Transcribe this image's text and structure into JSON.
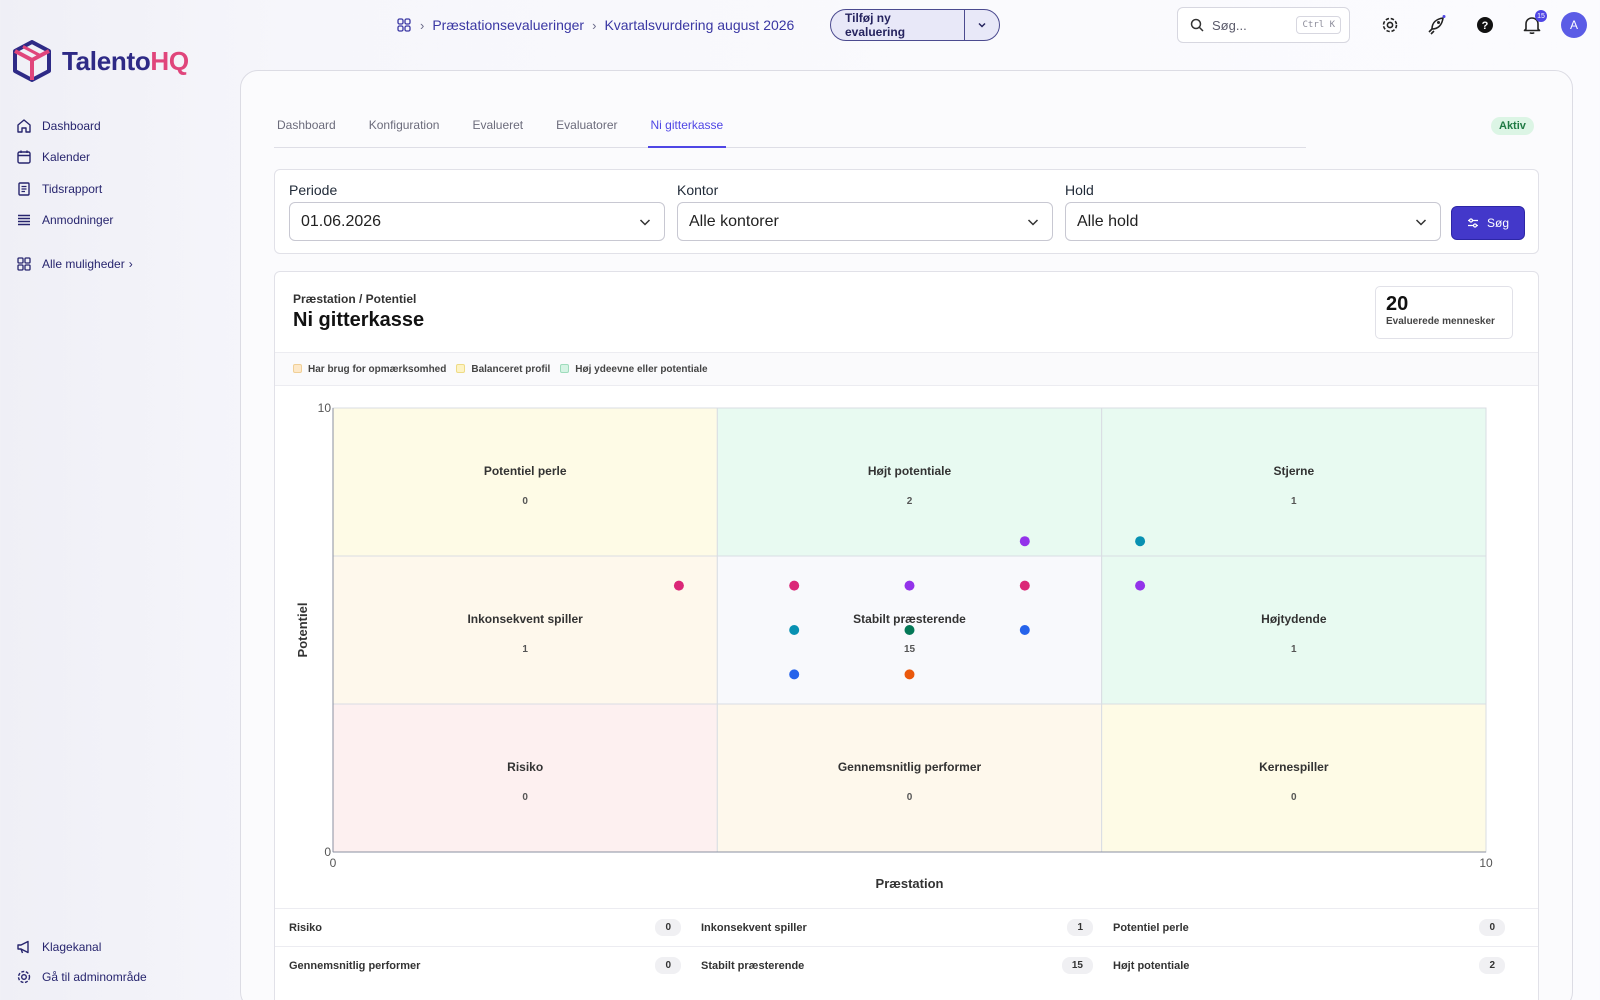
{
  "app": {
    "name_part1": "Talento",
    "name_part2": "HQ"
  },
  "sidebar": {
    "items": [
      {
        "label": "Dashboard",
        "icon": "home-icon"
      },
      {
        "label": "Kalender",
        "icon": "calendar-icon"
      },
      {
        "label": "Tidsrapport",
        "icon": "report-icon"
      },
      {
        "label": "Anmodninger",
        "icon": "list-icon"
      }
    ],
    "more_label": "Alle muligheder",
    "bottom": [
      {
        "label": "Klagekanal",
        "icon": "megaphone-icon"
      },
      {
        "label": "Gå til adminområde",
        "icon": "gear-icon"
      }
    ]
  },
  "header": {
    "breadcrumb": [
      "Præstationsevalueringer",
      "Kvartalsvurdering august 2026"
    ],
    "add_button": "Tilføj ny evaluering",
    "search_placeholder": "Søg...",
    "search_shortcut": "Ctrl K",
    "notification_count": "15",
    "avatar_initial": "A"
  },
  "tabs": [
    "Dashboard",
    "Konfiguration",
    "Evalueret",
    "Evaluatorer",
    "Ni gitterkasse"
  ],
  "active_tab": "Ni gitterkasse",
  "status": "Aktiv",
  "filters": {
    "period": {
      "label": "Periode",
      "value": "01.06.2026"
    },
    "office": {
      "label": "Kontor",
      "value": "Alle kontorer"
    },
    "team": {
      "label": "Hold",
      "value": "Alle hold"
    },
    "search_button": "Søg"
  },
  "card": {
    "subtitle": "Præstation / Potentiel",
    "title": "Ni gitterkasse",
    "count": "20",
    "count_label": "Evaluerede mennesker"
  },
  "legend": [
    {
      "label": "Har brug for opmærksomhed",
      "color": "#fde8c8"
    },
    {
      "label": "Balanceret profil",
      "color": "#fdf3c4"
    },
    {
      "label": "Høj ydeevne eller potentiale",
      "color": "#d5f3e4"
    }
  ],
  "chart_data": {
    "type": "scatter",
    "xlabel": "Præstation",
    "ylabel": "Potentiel",
    "xlim": [
      0,
      10
    ],
    "ylim": [
      0,
      10
    ],
    "x_ticks": [
      "0",
      "10"
    ],
    "y_ticks": [
      "0",
      "10"
    ],
    "cells": [
      {
        "label": "Potentiel perle",
        "count": "0",
        "col": 0,
        "row": 2,
        "color": "#fefbe6"
      },
      {
        "label": "Højt potentiale",
        "count": "2",
        "col": 1,
        "row": 2,
        "color": "#e8faf1"
      },
      {
        "label": "Stjerne",
        "count": "1",
        "col": 2,
        "row": 2,
        "color": "#e8faf1"
      },
      {
        "label": "Inkonsekvent spiller",
        "count": "1",
        "col": 0,
        "row": 1,
        "color": "#fef8ec"
      },
      {
        "label": "Stabilt præsterende",
        "count": "15",
        "col": 1,
        "row": 1,
        "color": "#f8f9fc"
      },
      {
        "label": "Højtydende",
        "count": "1",
        "col": 2,
        "row": 1,
        "color": "#e8faf1"
      },
      {
        "label": "Risiko",
        "count": "0",
        "col": 0,
        "row": 0,
        "color": "#fdf0f0"
      },
      {
        "label": "Gennemsnitlig performer",
        "count": "0",
        "col": 1,
        "row": 0,
        "color": "#fef8ec"
      },
      {
        "label": "Kernespiller",
        "count": "0",
        "col": 2,
        "row": 0,
        "color": "#fefbe6"
      }
    ],
    "points": [
      {
        "x": 4.0,
        "y": 6.0,
        "color": "#db2777"
      },
      {
        "x": 4.0,
        "y": 5.0,
        "color": "#0891b2"
      },
      {
        "x": 4.0,
        "y": 4.0,
        "color": "#2563eb"
      },
      {
        "x": 5.0,
        "y": 6.0,
        "color": "#9333ea"
      },
      {
        "x": 5.0,
        "y": 5.0,
        "color": "#047857"
      },
      {
        "x": 5.0,
        "y": 4.0,
        "color": "#ea580c"
      },
      {
        "x": 6.0,
        "y": 7.0,
        "color": "#9333ea"
      },
      {
        "x": 6.0,
        "y": 6.0,
        "color": "#db2777"
      },
      {
        "x": 6.0,
        "y": 5.0,
        "color": "#2563eb"
      },
      {
        "x": 7.0,
        "y": 7.0,
        "color": "#0891b2"
      },
      {
        "x": 7.0,
        "y": 6.0,
        "color": "#9333ea"
      },
      {
        "x": 3.0,
        "y": 6.0,
        "color": "#db2777"
      }
    ]
  },
  "summary": [
    [
      {
        "label": "Risiko",
        "count": "0"
      },
      {
        "label": "Inkonsekvent spiller",
        "count": "1"
      },
      {
        "label": "Potentiel perle",
        "count": "0"
      }
    ],
    [
      {
        "label": "Gennemsnitlig performer",
        "count": "0"
      },
      {
        "label": "Stabilt præsterende",
        "count": "15"
      },
      {
        "label": "Højt potentiale",
        "count": "2"
      }
    ]
  ]
}
